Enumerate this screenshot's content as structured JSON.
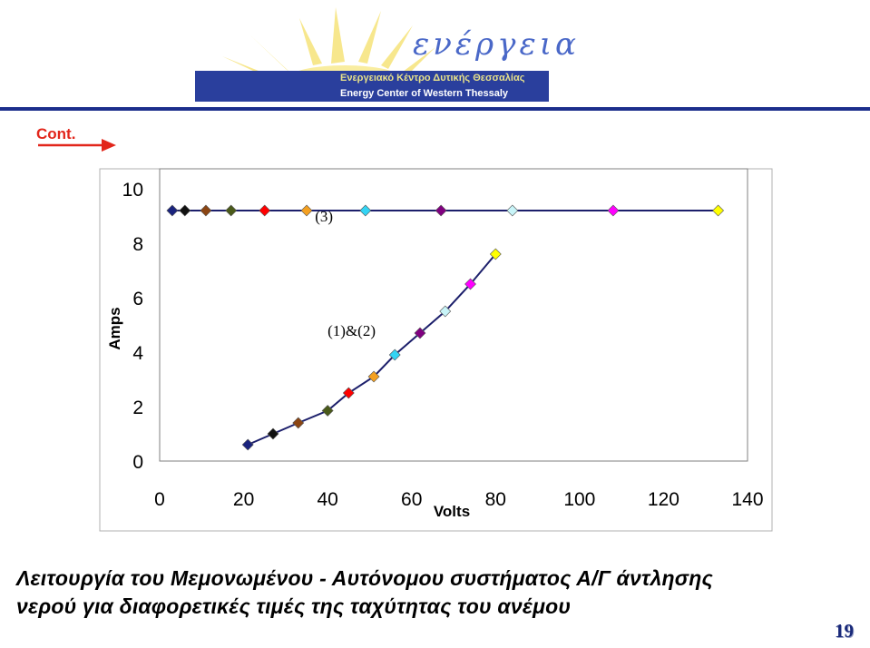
{
  "header": {
    "logo_word": "ενέργεια",
    "org_greek": "Ενεργειακό Κέντρο Δυτικής Θεσσαλίας",
    "org_english": "Energy Center of Western Thessaly"
  },
  "cont_label": "Cont.",
  "chart_data": {
    "type": "scatter",
    "title": "",
    "xlabel": "Volts",
    "ylabel": "Amps",
    "xlim": [
      0,
      140
    ],
    "ylim": [
      0,
      10
    ],
    "x_ticks": [
      "0",
      "20",
      "40",
      "60",
      "80",
      "100",
      "120",
      "140"
    ],
    "y_ticks": [
      "0",
      "2",
      "4",
      "6",
      "8",
      "10"
    ],
    "grid": false,
    "annotations": [
      {
        "text": "(3)",
        "x": 37,
        "y": 8.8
      },
      {
        "text": "(1)&(2)",
        "x": 40,
        "y": 4.6
      }
    ],
    "series": [
      {
        "points": [
          {
            "x": 21,
            "y": 0.6,
            "color": "#1a237e"
          },
          {
            "x": 27,
            "y": 1.0,
            "color": "#111111"
          },
          {
            "x": 33,
            "y": 1.4,
            "color": "#8b4513"
          },
          {
            "x": 40,
            "y": 1.85,
            "color": "#4a5a1a"
          },
          {
            "x": 45,
            "y": 2.5,
            "color": "#ff0000"
          },
          {
            "x": 51,
            "y": 3.1,
            "color": "#f4a020"
          },
          {
            "x": 56,
            "y": 3.9,
            "color": "#33d4f4"
          },
          {
            "x": 62,
            "y": 4.7,
            "color": "#800080"
          },
          {
            "x": 68,
            "y": 5.5,
            "color": "#c8f4f8"
          },
          {
            "x": 74,
            "y": 6.5,
            "color": "#ff00ff"
          },
          {
            "x": 80,
            "y": 7.6,
            "color": "#ffff00"
          }
        ]
      },
      {
        "points": [
          {
            "x": 3,
            "y": 9.2,
            "color": "#1a237e"
          },
          {
            "x": 6,
            "y": 9.2,
            "color": "#111111"
          },
          {
            "x": 11,
            "y": 9.2,
            "color": "#8b4513"
          },
          {
            "x": 17,
            "y": 9.2,
            "color": "#4a5a1a"
          },
          {
            "x": 25,
            "y": 9.2,
            "color": "#ff0000"
          },
          {
            "x": 35,
            "y": 9.2,
            "color": "#f4a020"
          },
          {
            "x": 49,
            "y": 9.2,
            "color": "#33d4f4"
          },
          {
            "x": 67,
            "y": 9.2,
            "color": "#800080"
          },
          {
            "x": 84,
            "y": 9.2,
            "color": "#c8f4f8"
          },
          {
            "x": 108,
            "y": 9.2,
            "color": "#ff00ff"
          },
          {
            "x": 133,
            "y": 9.2,
            "color": "#ffff00"
          }
        ]
      }
    ]
  },
  "caption_line1": "Λειτουργία του Μεμονωμένου - Αυτόνομου συστήματος Α/Γ άντλησης",
  "caption_line2": "νερού για διαφορετικές τιμές της ταχύτητας του ανέμου",
  "page_number": "19"
}
